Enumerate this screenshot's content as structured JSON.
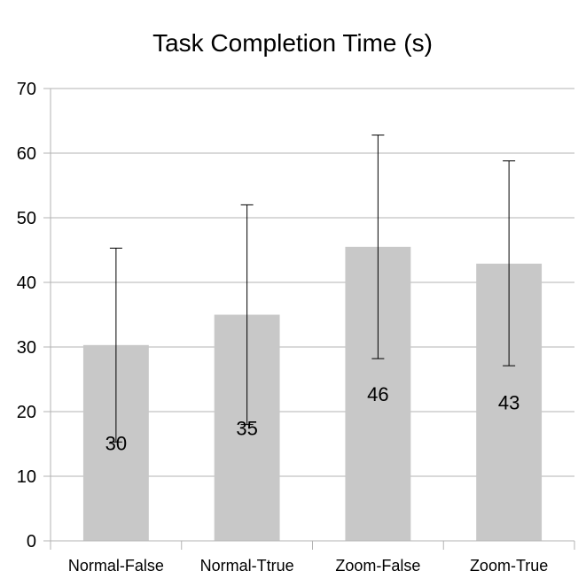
{
  "chart_data": {
    "type": "bar",
    "title": "Task Completion Time (s)",
    "xlabel": "",
    "ylabel": "",
    "categories": [
      "Normal-False",
      "Normal-Ttrue",
      "Zoom-False",
      "Zoom-True"
    ],
    "values": [
      30.3,
      35.0,
      45.5,
      42.9
    ],
    "data_labels": [
      "30",
      "35",
      "46",
      "43"
    ],
    "error_low": [
      15.3,
      18.0,
      28.2,
      27.1
    ],
    "error_high": [
      45.3,
      52.0,
      62.8,
      58.8
    ],
    "ylim": [
      0,
      70
    ],
    "yticks": [
      0,
      10,
      20,
      30,
      40,
      50,
      60,
      70
    ],
    "grid": true,
    "legend": "none",
    "colors": {
      "bar": "#c8c8c8",
      "grid": "#b3b3b3",
      "error": "#000000"
    }
  }
}
